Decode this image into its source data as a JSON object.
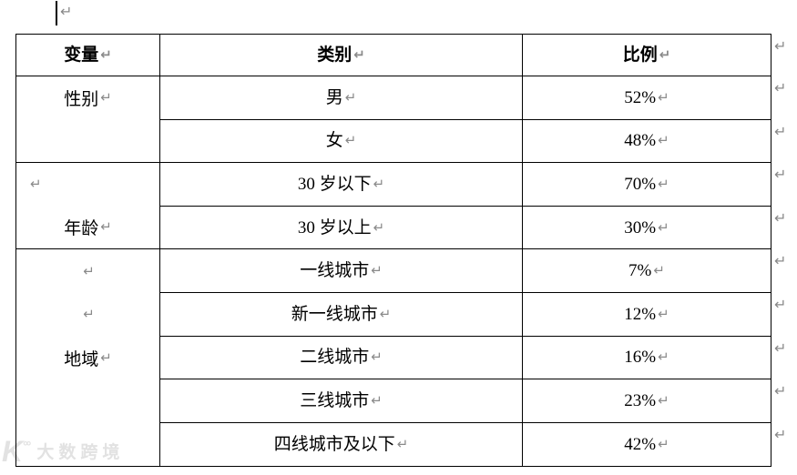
{
  "document": {
    "marks": {
      "paragraph": "↵",
      "cell_end": "↵",
      "row_end": "↵"
    },
    "watermark": {
      "icon": "K",
      "icon_sup": "°°",
      "text": "大数跨境"
    }
  },
  "table": {
    "headers": [
      "变量",
      "类别",
      "比例"
    ],
    "groups": [
      {
        "variable": "性别",
        "row_span": 2
      },
      {
        "variable": "年龄",
        "row_span": 2
      },
      {
        "variable": "地域",
        "row_span": 5
      }
    ],
    "rows": [
      {
        "category": "男",
        "percent": "52%"
      },
      {
        "category": "女",
        "percent": "48%"
      },
      {
        "category": "30 岁以下",
        "percent": "70%"
      },
      {
        "category": "30 岁以上",
        "percent": "30%"
      },
      {
        "category": "一线城市",
        "percent": "7%"
      },
      {
        "category": "新一线城市",
        "percent": "12%"
      },
      {
        "category": "二线城市",
        "percent": "16%"
      },
      {
        "category": "三线城市",
        "percent": "23%"
      },
      {
        "category": "四线城市及以下",
        "percent": "42%"
      }
    ]
  }
}
